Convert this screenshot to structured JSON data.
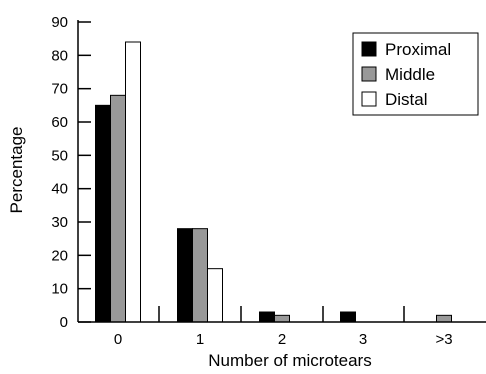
{
  "chart_data": {
    "type": "bar",
    "categories": [
      "0",
      "1",
      "2",
      "3",
      ">3"
    ],
    "series": [
      {
        "name": "Proximal",
        "color": "#000000",
        "values": [
          65,
          28,
          3,
          3,
          0
        ]
      },
      {
        "name": "Middle",
        "color": "#999999",
        "values": [
          68,
          28,
          2,
          0,
          2
        ]
      },
      {
        "name": "Distal",
        "color": "#ffffff",
        "values": [
          84,
          16,
          0,
          0,
          0
        ]
      }
    ],
    "yticks": [
      "0",
      "10",
      "20",
      "30",
      "40",
      "50",
      "60",
      "70",
      "80",
      "90"
    ],
    "ylim": [
      0,
      90
    ],
    "xlabel": "Number of microtears",
    "ylabel": "Percentage",
    "grid": false,
    "legend_position": "top-right"
  }
}
